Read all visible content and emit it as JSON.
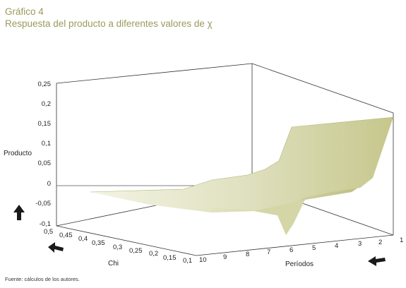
{
  "header": {
    "label": "Gráfico 4",
    "subtitle": "Respuesta del producto a diferentes valores de χ"
  },
  "source": "Fuente: cálculos de los autores.",
  "chart_data": {
    "type": "area",
    "title": "Respuesta del producto a diferentes valores de χ",
    "zlabel": "Producto",
    "xlabel": "Períodos",
    "ylabel": "Chi",
    "zlim": [
      -0.1,
      0.25
    ],
    "z_ticks": [
      "0,25",
      "0,2",
      "0,15",
      "0,1",
      "0,05",
      "0",
      "-0,05",
      "-0,1"
    ],
    "period_ticks": [
      "1",
      "2",
      "3",
      "4",
      "5",
      "6",
      "7",
      "8",
      "9",
      "10"
    ],
    "chi_ticks": [
      "0,5",
      "0,45",
      "0,4",
      "0,35",
      "0,3",
      "0,25",
      "0,2",
      "0,15",
      "0,1"
    ],
    "periods": [
      1,
      2,
      3,
      4,
      5,
      6,
      7,
      8,
      9,
      10
    ],
    "chi": [
      0.5,
      0.1
    ],
    "surface_back_chi_0_5": [
      0.165,
      0.125,
      0.07,
      0.05,
      0.03,
      0.015,
      0.01,
      0.005,
      0.0,
      -0.005
    ],
    "surface_front_chi_0_1": [
      0.01,
      0.0,
      -0.02,
      -0.04,
      -0.065,
      -0.095,
      -0.055,
      -0.03,
      -0.02,
      -0.01
    ],
    "grid": false,
    "arrow_color": "#1a1a1a",
    "surface_color": "#c8c98e"
  }
}
